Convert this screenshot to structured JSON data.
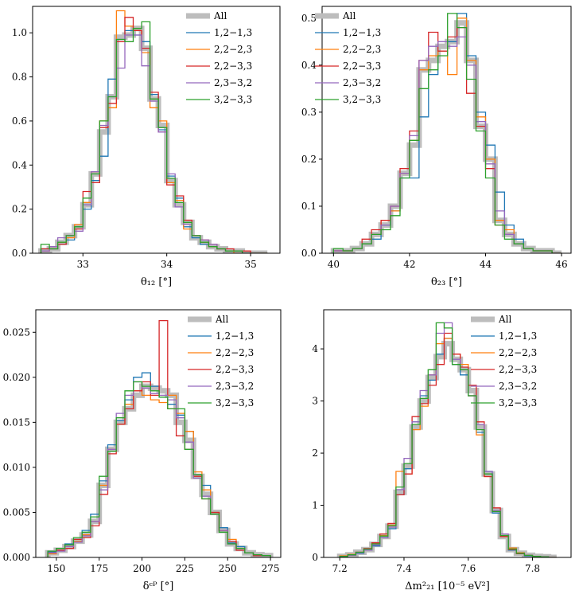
{
  "chart_data": [
    {
      "type": "histogram",
      "xlabel": "θ₁₂ [°]",
      "ylabel": "",
      "xlim": [
        32.4,
        35.35
      ],
      "ylim": [
        0,
        1.12
      ],
      "xticks": [
        33,
        34,
        35
      ],
      "yticks": [
        0.0,
        0.2,
        0.4,
        0.6,
        0.8,
        1.0
      ],
      "ytick_labels": [
        "0.0",
        "0.2",
        "0.4",
        "0.6",
        "0.8",
        "1.0"
      ],
      "legend_position": "top-right",
      "bin_edges": [
        32.5,
        32.6,
        32.7,
        32.8,
        32.9,
        33.0,
        33.1,
        33.2,
        33.3,
        33.4,
        33.5,
        33.6,
        33.7,
        33.8,
        33.9,
        34.0,
        34.1,
        34.2,
        34.3,
        34.4,
        34.5,
        34.6,
        34.7,
        34.8,
        34.9,
        35.0,
        35.1,
        35.2
      ],
      "series": [
        {
          "name": "All",
          "values": [
            0.01,
            0.02,
            0.05,
            0.08,
            0.12,
            0.22,
            0.36,
            0.55,
            0.71,
            0.98,
            0.99,
            1.02,
            0.93,
            0.7,
            0.58,
            0.33,
            0.22,
            0.14,
            0.07,
            0.05,
            0.03,
            0.02,
            0.01,
            0.01,
            0.0,
            0.0,
            0.0
          ]
        },
        {
          "name": "1,2−1,3",
          "values": [
            0.02,
            0.02,
            0.04,
            0.06,
            0.12,
            0.2,
            0.33,
            0.44,
            0.79,
            0.97,
            1.01,
            0.99,
            0.96,
            0.72,
            0.56,
            0.35,
            0.25,
            0.12,
            0.07,
            0.04,
            0.03,
            0.02,
            0.01,
            0.01,
            0.0,
            0.0,
            0.0
          ]
        },
        {
          "name": "2,2−2,3",
          "values": [
            0.01,
            0.03,
            0.05,
            0.07,
            0.13,
            0.23,
            0.37,
            0.6,
            0.66,
            1.1,
            1.03,
            1.01,
            0.91,
            0.66,
            0.6,
            0.32,
            0.24,
            0.11,
            0.08,
            0.05,
            0.03,
            0.02,
            0.01,
            0.0,
            0.0,
            0.0,
            0.0
          ]
        },
        {
          "name": "2,2−3,3",
          "values": [
            0.02,
            0.02,
            0.04,
            0.08,
            0.11,
            0.28,
            0.32,
            0.57,
            0.68,
            0.96,
            1.07,
            1.01,
            0.93,
            0.73,
            0.55,
            0.31,
            0.26,
            0.15,
            0.08,
            0.06,
            0.04,
            0.02,
            0.02,
            0.01,
            0.01,
            0.0,
            0.0
          ]
        },
        {
          "name": "2,3−3,2",
          "values": [
            0.01,
            0.03,
            0.07,
            0.08,
            0.1,
            0.22,
            0.37,
            0.58,
            0.71,
            0.84,
            0.99,
            0.99,
            0.85,
            0.69,
            0.55,
            0.36,
            0.21,
            0.13,
            0.08,
            0.06,
            0.04,
            0.02,
            0.01,
            0.01,
            0.0,
            0.0,
            0.0
          ]
        },
        {
          "name": "3,2−3,3",
          "values": [
            0.04,
            0.02,
            0.05,
            0.08,
            0.12,
            0.25,
            0.36,
            0.6,
            0.71,
            0.97,
            0.96,
            1.02,
            1.05,
            0.7,
            0.57,
            0.34,
            0.23,
            0.14,
            0.08,
            0.05,
            0.03,
            0.02,
            0.01,
            0.01,
            0.0,
            0.0,
            0.0
          ]
        }
      ]
    },
    {
      "type": "histogram",
      "xlabel": "θ₂₃ [°]",
      "ylabel": "",
      "xlim": [
        39.7,
        46.25
      ],
      "ylim": [
        0,
        0.525
      ],
      "xticks": [
        40,
        42,
        44,
        46
      ],
      "yticks": [
        0.0,
        0.1,
        0.2,
        0.3,
        0.4,
        0.5
      ],
      "ytick_labels": [
        "0.0",
        "0.1",
        "0.2",
        "0.3",
        "0.4",
        "0.5"
      ],
      "legend_position": "top-left",
      "bin_edges": [
        40.0,
        40.25,
        40.5,
        40.75,
        41.0,
        41.25,
        41.5,
        41.75,
        42.0,
        42.25,
        42.5,
        42.75,
        43.0,
        43.25,
        43.5,
        43.75,
        44.0,
        44.25,
        44.5,
        44.75,
        45.0,
        45.25,
        45.5,
        45.75,
        46.0
      ],
      "series": [
        {
          "name": "All",
          "values": [
            0.005,
            0.005,
            0.01,
            0.02,
            0.04,
            0.06,
            0.1,
            0.17,
            0.23,
            0.39,
            0.41,
            0.44,
            0.45,
            0.49,
            0.41,
            0.27,
            0.2,
            0.07,
            0.04,
            0.02,
            0.01,
            0.005,
            0.005,
            0.0
          ]
        },
        {
          "name": "1,2−1,3",
          "values": [
            0.005,
            0.005,
            0.01,
            0.02,
            0.03,
            0.06,
            0.09,
            0.16,
            0.16,
            0.29,
            0.38,
            0.43,
            0.45,
            0.51,
            0.42,
            0.3,
            0.23,
            0.13,
            0.06,
            0.03,
            0.01,
            0.005,
            0.005,
            0.0
          ]
        },
        {
          "name": "2,2−2,3",
          "values": [
            0.005,
            0.005,
            0.01,
            0.02,
            0.04,
            0.07,
            0.09,
            0.17,
            0.24,
            0.39,
            0.42,
            0.43,
            0.38,
            0.5,
            0.41,
            0.29,
            0.2,
            0.07,
            0.05,
            0.02,
            0.01,
            0.005,
            0.005,
            0.0
          ]
        },
        {
          "name": "2,2−3,3",
          "values": [
            0.005,
            0.005,
            0.01,
            0.03,
            0.05,
            0.07,
            0.1,
            0.18,
            0.26,
            0.41,
            0.47,
            0.43,
            0.46,
            0.48,
            0.34,
            0.27,
            0.18,
            0.06,
            0.04,
            0.02,
            0.01,
            0.005,
            0.005,
            0.0
          ]
        },
        {
          "name": "2,3−3,2",
          "values": [
            0.005,
            0.005,
            0.01,
            0.02,
            0.04,
            0.06,
            0.1,
            0.17,
            0.25,
            0.41,
            0.44,
            0.45,
            0.44,
            0.46,
            0.4,
            0.28,
            0.19,
            0.09,
            0.04,
            0.02,
            0.01,
            0.005,
            0.005,
            0.0
          ]
        },
        {
          "name": "3,2−3,3",
          "values": [
            0.01,
            0.005,
            0.01,
            0.02,
            0.04,
            0.05,
            0.08,
            0.16,
            0.24,
            0.35,
            0.39,
            0.42,
            0.51,
            0.48,
            0.37,
            0.26,
            0.16,
            0.06,
            0.03,
            0.02,
            0.01,
            0.005,
            0.005,
            0.0
          ]
        }
      ]
    },
    {
      "type": "histogram",
      "xlabel": "δᶜᴾ [°]",
      "ylabel": "",
      "xlim": [
        138,
        281
      ],
      "ylim": [
        0,
        0.0275
      ],
      "xticks": [
        150,
        175,
        200,
        225,
        250,
        275
      ],
      "yticks": [
        0.0,
        0.005,
        0.01,
        0.015,
        0.02,
        0.025
      ],
      "ytick_labels": [
        "0.000",
        "0.005",
        "0.010",
        "0.015",
        "0.020",
        "0.025"
      ],
      "legend_position": "top-right",
      "bin_edges": [
        145,
        150,
        155,
        160,
        165,
        170,
        175,
        180,
        185,
        190,
        195,
        200,
        205,
        210,
        215,
        220,
        225,
        230,
        235,
        240,
        245,
        250,
        255,
        260,
        265,
        270,
        275
      ],
      "series": [
        {
          "name": "All",
          "values": [
            0.0005,
            0.0008,
            0.0012,
            0.0018,
            0.0025,
            0.004,
            0.008,
            0.012,
            0.015,
            0.0165,
            0.018,
            0.019,
            0.0188,
            0.0185,
            0.018,
            0.015,
            0.013,
            0.009,
            0.007,
            0.005,
            0.003,
            0.0015,
            0.001,
            0.0005,
            0.0003,
            0.0002
          ]
        },
        {
          "name": "1,2−1,3",
          "values": [
            0.0006,
            0.001,
            0.0015,
            0.002,
            0.003,
            0.0048,
            0.0085,
            0.0125,
            0.0152,
            0.0175,
            0.02,
            0.0205,
            0.019,
            0.0178,
            0.017,
            0.0158,
            0.014,
            0.0092,
            0.008,
            0.005,
            0.0033,
            0.0016,
            0.0012,
            0.0005,
            0.0003,
            0.0002
          ]
        },
        {
          "name": "2,2−2,3",
          "values": [
            0.0004,
            0.0008,
            0.0012,
            0.0018,
            0.0025,
            0.004,
            0.008,
            0.012,
            0.0148,
            0.017,
            0.0185,
            0.018,
            0.0175,
            0.0172,
            0.018,
            0.016,
            0.014,
            0.0095,
            0.0075,
            0.005,
            0.003,
            0.002,
            0.001,
            0.0005,
            0.0003,
            0.0002
          ]
        },
        {
          "name": "2,2−3,3",
          "values": [
            0.0005,
            0.0008,
            0.001,
            0.002,
            0.0022,
            0.0035,
            0.007,
            0.0115,
            0.0148,
            0.0165,
            0.0185,
            0.0195,
            0.018,
            0.0263,
            0.0165,
            0.0135,
            0.012,
            0.009,
            0.0065,
            0.005,
            0.003,
            0.0018,
            0.0008,
            0.0005,
            0.0002,
            0.0002
          ]
        },
        {
          "name": "2,3−3,2",
          "values": [
            0.0005,
            0.0007,
            0.0012,
            0.0017,
            0.0024,
            0.004,
            0.0075,
            0.012,
            0.016,
            0.018,
            0.0195,
            0.0188,
            0.0182,
            0.018,
            0.0175,
            0.0155,
            0.0128,
            0.0088,
            0.0068,
            0.0048,
            0.003,
            0.0015,
            0.001,
            0.0005,
            0.0003,
            0.0002
          ]
        },
        {
          "name": "3,2−3,3",
          "values": [
            0.0007,
            0.001,
            0.0014,
            0.0022,
            0.0028,
            0.0045,
            0.009,
            0.0118,
            0.0155,
            0.0185,
            0.0195,
            0.019,
            0.0185,
            0.0178,
            0.0165,
            0.0165,
            0.012,
            0.0092,
            0.0065,
            0.0048,
            0.0028,
            0.0015,
            0.001,
            0.0005,
            0.0003,
            0.0002
          ]
        }
      ]
    },
    {
      "type": "histogram",
      "xlabel": "Δm²₂₁ [10⁻⁵ eV²]",
      "ylabel": "",
      "xlim": [
        7.15,
        7.92
      ],
      "ylim": [
        0,
        4.75
      ],
      "xticks": [
        7.2,
        7.4,
        7.6,
        7.8
      ],
      "yticks": [
        0,
        1,
        2,
        3,
        4
      ],
      "ytick_labels": [
        "0",
        "1",
        "2",
        "3",
        "4"
      ],
      "legend_position": "top-right",
      "bin_edges": [
        7.2,
        7.225,
        7.25,
        7.275,
        7.3,
        7.325,
        7.35,
        7.375,
        7.4,
        7.425,
        7.45,
        7.475,
        7.5,
        7.525,
        7.55,
        7.575,
        7.6,
        7.625,
        7.65,
        7.675,
        7.7,
        7.725,
        7.75,
        7.775,
        7.8,
        7.825,
        7.85,
        7.875
      ],
      "series": [
        {
          "name": "All",
          "values": [
            0.02,
            0.05,
            0.1,
            0.15,
            0.25,
            0.4,
            0.6,
            1.25,
            1.75,
            2.5,
            3.0,
            3.45,
            3.85,
            4.1,
            3.8,
            3.6,
            3.2,
            2.5,
            1.6,
            0.9,
            0.4,
            0.15,
            0.08,
            0.04,
            0.02,
            0.01,
            0.0
          ]
        },
        {
          "name": "1,2−1,3",
          "values": [
            0.02,
            0.05,
            0.08,
            0.14,
            0.22,
            0.38,
            0.55,
            1.2,
            1.7,
            2.6,
            3.1,
            3.4,
            3.9,
            4.2,
            3.7,
            3.5,
            3.1,
            2.4,
            1.65,
            0.85,
            0.4,
            0.14,
            0.08,
            0.03,
            0.02,
            0.01,
            0.0
          ]
        },
        {
          "name": "2,2−2,3",
          "values": [
            0.03,
            0.06,
            0.1,
            0.16,
            0.27,
            0.42,
            0.62,
            1.65,
            1.6,
            2.45,
            2.9,
            3.5,
            4.1,
            4.2,
            3.9,
            3.7,
            3.1,
            2.35,
            1.55,
            0.9,
            0.4,
            0.18,
            0.09,
            0.04,
            0.02,
            0.01,
            0.0
          ]
        },
        {
          "name": "2,2−3,3",
          "values": [
            0.02,
            0.05,
            0.1,
            0.17,
            0.28,
            0.45,
            0.65,
            1.2,
            1.6,
            2.7,
            2.95,
            3.3,
            3.7,
            4.3,
            3.9,
            3.65,
            3.3,
            2.6,
            1.55,
            0.95,
            0.4,
            0.15,
            0.07,
            0.04,
            0.02,
            0.01,
            0.0
          ]
        },
        {
          "name": "2,3−3,2",
          "values": [
            0.02,
            0.04,
            0.09,
            0.14,
            0.24,
            0.38,
            0.58,
            1.3,
            1.9,
            2.6,
            3.2,
            3.5,
            4.3,
            4.5,
            3.8,
            3.6,
            3.1,
            2.55,
            1.65,
            0.9,
            0.45,
            0.16,
            0.08,
            0.04,
            0.02,
            0.01,
            0.0
          ]
        },
        {
          "name": "3,2−3,3",
          "values": [
            0.02,
            0.05,
            0.1,
            0.16,
            0.26,
            0.41,
            0.61,
            1.35,
            1.8,
            2.55,
            3.05,
            3.6,
            4.5,
            4.4,
            3.7,
            3.6,
            3.1,
            2.45,
            1.6,
            0.88,
            0.42,
            0.16,
            0.08,
            0.04,
            0.02,
            0.01,
            0.0
          ]
        }
      ]
    }
  ],
  "colors": {
    "All": "#bdbdbd",
    "1,2−1,3": "#1f77b4",
    "2,2−2,3": "#ff7f0e",
    "2,2−3,3": "#d62728",
    "2,3−3,2": "#9467bd",
    "3,2−3,3": "#2ca02c"
  }
}
